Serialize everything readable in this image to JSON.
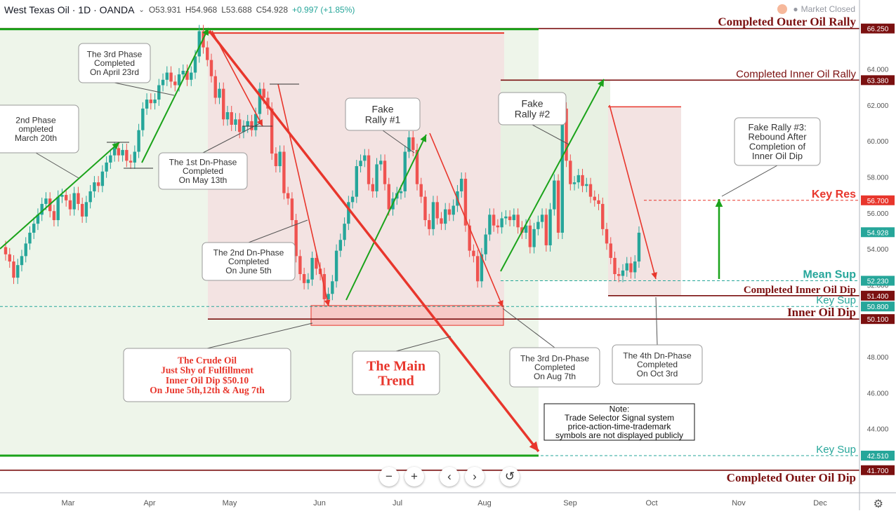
{
  "header": {
    "symbol": "West Texas Oil · 1D · OANDA",
    "open": "O53.931",
    "high": "H54.968",
    "low": "L53.688",
    "close": "C54.928",
    "change": "+0.997 (+1.85%)",
    "market_status": "Market Closed"
  },
  "colors": {
    "up": "#26a69a",
    "down": "#ef5350",
    "green": "#1aa31a",
    "red": "#e8362c",
    "maroon": "#7b1010"
  },
  "chart_data": {
    "type": "candlestick",
    "x_labels": [
      "Mar",
      "Apr",
      "May",
      "Jun",
      "Jul",
      "Aug",
      "Sep",
      "Oct",
      "Nov",
      "Dec"
    ],
    "y_ticks": [
      "44.000",
      "46.000",
      "48.000",
      "50.000",
      "52.000",
      "54.000",
      "56.000",
      "58.000",
      "60.000",
      "62.000",
      "64.000"
    ],
    "y_range": [
      40.6,
      66.9
    ],
    "price_levels": [
      {
        "price": 66.25,
        "label": "66.250",
        "name": "Completed Outer Oil Rally",
        "color": "#7b1010",
        "style": "solid"
      },
      {
        "price": 63.38,
        "label": "63.380",
        "name": "Completed Inner Oil Rally",
        "color": "#7b1010",
        "style": "solid"
      },
      {
        "price": 56.7,
        "label": "56.700",
        "name": "Key Res",
        "color": "#e8362c",
        "style": "dashed"
      },
      {
        "price": 54.928,
        "label": "54.928",
        "name": "",
        "color": "#26a69a",
        "style": "none"
      },
      {
        "price": 52.23,
        "label": "52.230",
        "name": "Mean Sup",
        "color": "#26a69a",
        "style": "dashed"
      },
      {
        "price": 51.4,
        "label": "51.400",
        "name": "Completed Inner Oil Dip",
        "color": "#7b1010",
        "style": "solid"
      },
      {
        "price": 50.8,
        "label": "50.800",
        "name": "Key Sup",
        "color": "#26a69a",
        "style": "dashed"
      },
      {
        "price": 50.1,
        "label": "50.100",
        "name": "Inner Oil Dip",
        "color": "#7b1010",
        "style": "solid"
      },
      {
        "price": 42.51,
        "label": "42.510",
        "name": "Key Sup",
        "color": "#26a69a",
        "style": "dashed"
      },
      {
        "price": 41.7,
        "label": "41.700",
        "name": "Completed Outer Oil Dip",
        "color": "#7b1010",
        "style": "solid"
      }
    ],
    "closes": [
      53.7,
      53.3,
      52.4,
      53.1,
      53.6,
      54.3,
      54.9,
      55.4,
      55.9,
      56.5,
      56.8,
      56.1,
      55.6,
      56.9,
      57.0,
      56.7,
      56.2,
      57.1,
      56.5,
      55.8,
      56.6,
      57.2,
      57.7,
      57.5,
      58.3,
      58.8,
      59.2,
      59.6,
      59.2,
      59.5,
      58.9,
      58.8,
      59.4,
      60.6,
      61.8,
      62.3,
      62.1,
      62.3,
      63.1,
      63.4,
      63.8,
      63.3,
      63.1,
      63.7,
      63.9,
      63.4,
      63.8,
      64.7,
      66.1,
      65.2,
      64.5,
      63.6,
      62.4,
      62.9,
      61.2,
      61.6,
      60.9,
      61.2,
      60.5,
      60.8,
      61.1,
      60.6,
      61.5,
      62.9,
      62.4,
      61.8,
      59.3,
      58.6,
      59.4,
      57.1,
      56.8,
      55.6,
      53.6,
      52.6,
      52.1,
      52.3,
      53.5,
      52.9,
      52.6,
      51.2,
      51.5,
      52.2,
      53.9,
      54.5,
      55.4,
      56.6,
      56.9,
      58.6,
      58.9,
      59.2,
      57.6,
      57.2,
      58.7,
      58.9,
      57.6,
      56.2,
      56.8,
      57.1,
      57.2,
      59.4,
      60.2,
      59.5,
      57.6,
      56.9,
      55.6,
      55.1,
      56.6,
      55.7,
      55.4,
      56.2,
      55.9,
      56.4,
      57.2,
      57.9,
      55.3,
      53.9,
      53.6,
      52.2,
      53.7,
      54.8,
      55.9,
      55.3,
      55.2,
      55.7,
      55.8,
      55.6,
      55.9,
      55.2,
      54.9,
      55.3,
      54.1,
      55.1,
      55.5,
      55.9,
      54.2,
      56.2,
      57.8,
      54.9,
      61.8,
      58.9,
      57.6,
      57.7,
      58.1,
      57.5,
      57.6,
      56.9,
      56.7,
      56.5,
      55.1,
      54.3,
      53.5,
      52.6,
      52.5,
      52.8,
      53.2,
      52.7,
      53.3,
      54.9
    ],
    "drawn_levels_note": "",
    "annotations": [
      {
        "text": "2nd Phase\nompleted\nMarch 20th"
      },
      {
        "text": "The 3rd Phase\nCompleted\nOn April 23rd"
      },
      {
        "text": "The 1st Dn-Phase\nCompleted\nOn May 13th"
      },
      {
        "text": "The 2nd Dn-Phase\nCompleted\nOn June 5th"
      },
      {
        "text": "Fake\nRally #1"
      },
      {
        "text": "Fake\nRally #2"
      },
      {
        "text": "Fake Rally #3:\nRebound After\nCompletion of\nInner Oil Dip"
      },
      {
        "text": "The 3rd Dn-Phase\nCompleted\nOn Aug 7th"
      },
      {
        "text": "The 4th Dn-Phase\nCompleted\nOn Oct 3rd"
      },
      {
        "text": "The Crude Oil\nJust Shy of Fulfillment\nInner Oil Dip $50.10\nOn June 5th,12th & Aug 7th"
      },
      {
        "text": "The Main\nTrend"
      },
      {
        "text": "Note:\nTrade Selector Signal system\nprice-action-time-trademark\nsymbols are not displayed publicly"
      }
    ]
  },
  "toolbar": {
    "zoom_out": "−",
    "zoom_in": "+",
    "prev": "‹",
    "next": "›",
    "reset": "↺"
  }
}
